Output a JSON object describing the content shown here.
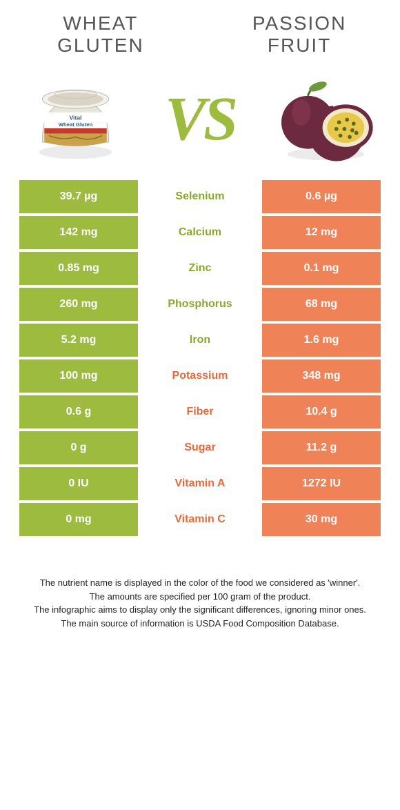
{
  "colors": {
    "left_bg": "#9cbb3f",
    "left_text": "#ffffff",
    "right_bg": "#ef8257",
    "right_text": "#ffffff",
    "nutrient_left_winner": "#8aa82f",
    "nutrient_right_winner": "#e56a3a",
    "title_text": "#555555",
    "vs_text": "#9cbb3f"
  },
  "food_left": {
    "title": "WHEAT GLUTEN"
  },
  "food_right": {
    "title": "PASSION FRUIT"
  },
  "vs_label": "VS",
  "rows": [
    {
      "nutrient": "Selenium",
      "left": "39.7 µg",
      "right": "0.6 µg",
      "winner": "left"
    },
    {
      "nutrient": "Calcium",
      "left": "142 mg",
      "right": "12 mg",
      "winner": "left"
    },
    {
      "nutrient": "Zinc",
      "left": "0.85 mg",
      "right": "0.1 mg",
      "winner": "left"
    },
    {
      "nutrient": "Phosphorus",
      "left": "260 mg",
      "right": "68 mg",
      "winner": "left"
    },
    {
      "nutrient": "Iron",
      "left": "5.2 mg",
      "right": "1.6 mg",
      "winner": "left"
    },
    {
      "nutrient": "Potassium",
      "left": "100 mg",
      "right": "348 mg",
      "winner": "right"
    },
    {
      "nutrient": "Fiber",
      "left": "0.6 g",
      "right": "10.4 g",
      "winner": "right"
    },
    {
      "nutrient": "Sugar",
      "left": "0 g",
      "right": "11.2 g",
      "winner": "right"
    },
    {
      "nutrient": "Vitamin A",
      "left": "0 IU",
      "right": "1272 IU",
      "winner": "right"
    },
    {
      "nutrient": "Vitamin C",
      "left": "0 mg",
      "right": "30 mg",
      "winner": "right"
    }
  ],
  "footer": {
    "line1": "The nutrient name is displayed in the color of the food we considered as 'winner'.",
    "line2": "The amounts are specified per 100 gram of the product.",
    "line3": "The infographic aims to display only the significant differences, ignoring minor ones.",
    "line4": "The main source of information is USDA Food Composition Database."
  }
}
